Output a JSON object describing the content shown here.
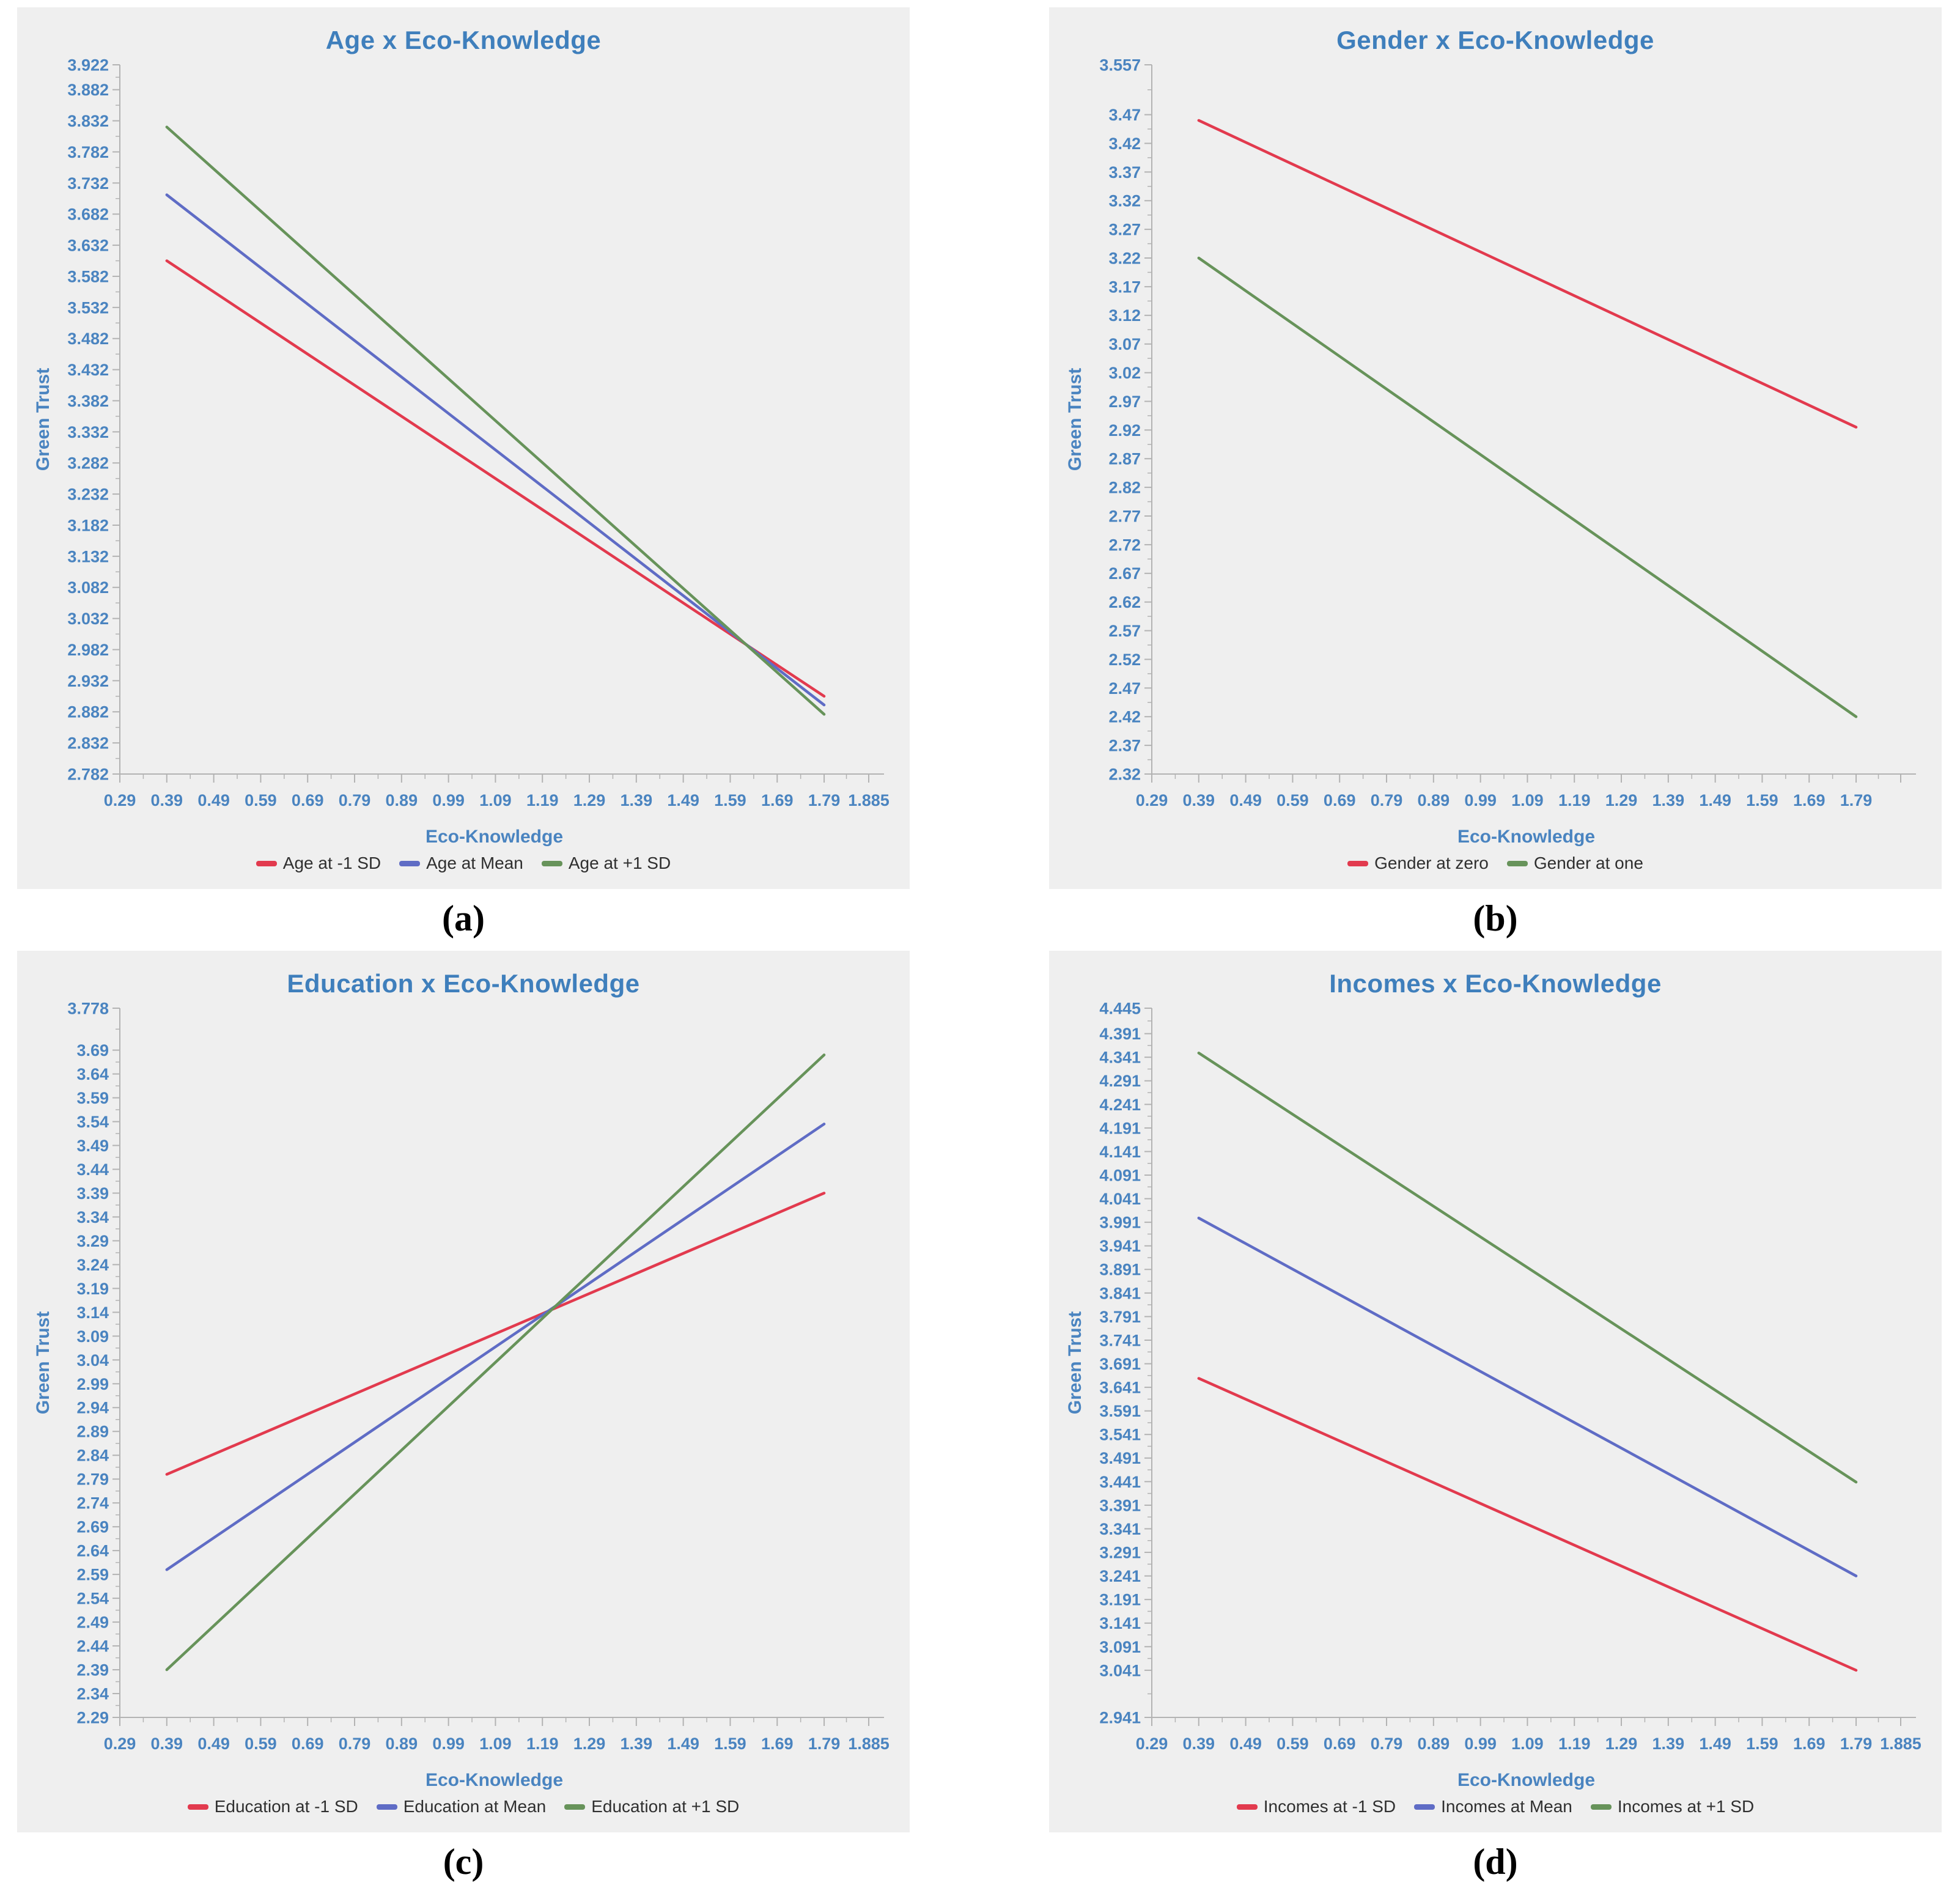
{
  "colors": {
    "page_bg": "#ffffff",
    "panel_bg": "#efefef",
    "title_text": "#3f7fbc",
    "axis_text": "#4a84c0",
    "legend_text": "#2f2f2f",
    "axis_line": "#b3b3b3",
    "red_line": "#e23a4e",
    "blue_line": "#5f6cc5",
    "green_line": "#67935a"
  },
  "chart_data": [
    {
      "id": "a",
      "type": "line",
      "caption_label": "(a)",
      "title": "Age x Eco-Knowledge",
      "xlabel": "Eco-Knowledge",
      "ylabel": "Green Trust",
      "xlim": [
        0.29,
        1.885
      ],
      "ylim": [
        2.782,
        3.922
      ],
      "grid": false,
      "legend_position": "bottom",
      "x_tick_labels": [
        "0.29",
        "0.39",
        "0.49",
        "0.59",
        "0.69",
        "0.79",
        "0.89",
        "0.99",
        "1.09",
        "1.19",
        "1.29",
        "1.39",
        "1.49",
        "1.59",
        "1.69",
        "1.79",
        "1.885"
      ],
      "y_tick_labels": [
        "3.922",
        "3.882",
        "3.832",
        "3.782",
        "3.732",
        "3.682",
        "3.632",
        "3.582",
        "3.532",
        "3.482",
        "3.432",
        "3.382",
        "3.332",
        "3.282",
        "3.232",
        "3.182",
        "3.132",
        "3.082",
        "3.032",
        "2.982",
        "2.932",
        "2.882",
        "2.832",
        "2.782"
      ],
      "series": [
        {
          "name": "Age at -1 SD",
          "color": "#e23a4e",
          "x": [
            0.39,
            1.79
          ],
          "y": [
            3.607,
            2.907
          ]
        },
        {
          "name": "Age at Mean",
          "color": "#5f6cc5",
          "x": [
            0.39,
            1.79
          ],
          "y": [
            3.713,
            2.893
          ]
        },
        {
          "name": "Age at +1 SD",
          "color": "#67935a",
          "x": [
            0.39,
            1.79
          ],
          "y": [
            3.822,
            2.878
          ]
        }
      ]
    },
    {
      "id": "b",
      "type": "line",
      "caption_label": "(b)",
      "title": "Gender x Eco-Knowledge",
      "xlabel": "Eco-Knowledge",
      "ylabel": "Green Trust",
      "xlim": [
        0.29,
        1.885
      ],
      "ylim": [
        2.32,
        3.557
      ],
      "grid": false,
      "legend_position": "bottom",
      "x_tick_labels": [
        "0.29",
        "0.39",
        "0.49",
        "0.59",
        "0.69",
        "0.79",
        "0.89",
        "0.99",
        "1.09",
        "1.19",
        "1.29",
        "1.39",
        "1.49",
        "1.59",
        "1.69",
        "1.79"
      ],
      "y_tick_labels": [
        "3.557",
        "3.47",
        "3.42",
        "3.37",
        "3.32",
        "3.27",
        "3.22",
        "3.17",
        "3.12",
        "3.07",
        "3.02",
        "2.97",
        "2.92",
        "2.87",
        "2.82",
        "2.77",
        "2.72",
        "2.67",
        "2.62",
        "2.57",
        "2.52",
        "2.47",
        "2.42",
        "2.37",
        "2.32"
      ],
      "series": [
        {
          "name": "Gender at zero",
          "color": "#e23a4e",
          "x": [
            0.39,
            1.79
          ],
          "y": [
            3.46,
            2.925
          ]
        },
        {
          "name": "Gender at one",
          "color": "#67935a",
          "x": [
            0.39,
            1.79
          ],
          "y": [
            3.22,
            2.42
          ]
        }
      ]
    },
    {
      "id": "c",
      "type": "line",
      "caption_label": "(c)",
      "title": "Education x Eco-Knowledge",
      "xlabel": "Eco-Knowledge",
      "ylabel": "Green Trust",
      "xlim": [
        0.29,
        1.885
      ],
      "ylim": [
        2.29,
        3.778
      ],
      "grid": false,
      "legend_position": "bottom",
      "x_tick_labels": [
        "0.29",
        "0.39",
        "0.49",
        "0.59",
        "0.69",
        "0.79",
        "0.89",
        "0.99",
        "1.09",
        "1.19",
        "1.29",
        "1.39",
        "1.49",
        "1.59",
        "1.69",
        "1.79",
        "1.885"
      ],
      "y_tick_labels": [
        "3.778",
        "3.69",
        "3.64",
        "3.59",
        "3.54",
        "3.49",
        "3.44",
        "3.39",
        "3.34",
        "3.29",
        "3.24",
        "3.19",
        "3.14",
        "3.09",
        "3.04",
        "2.99",
        "2.94",
        "2.89",
        "2.84",
        "2.79",
        "2.74",
        "2.69",
        "2.64",
        "2.59",
        "2.54",
        "2.49",
        "2.44",
        "2.39",
        "2.34",
        "2.29"
      ],
      "series": [
        {
          "name": "Education at -1 SD",
          "color": "#e23a4e",
          "x": [
            0.39,
            1.79
          ],
          "y": [
            2.8,
            3.39
          ]
        },
        {
          "name": "Education at Mean",
          "color": "#5f6cc5",
          "x": [
            0.39,
            1.79
          ],
          "y": [
            2.6,
            3.535
          ]
        },
        {
          "name": "Education at +1 SD",
          "color": "#67935a",
          "x": [
            0.39,
            1.79
          ],
          "y": [
            2.39,
            3.68
          ]
        }
      ]
    },
    {
      "id": "d",
      "type": "line",
      "caption_label": "(d)",
      "title": "Incomes x Eco-Knowledge",
      "xlabel": "Eco-Knowledge",
      "ylabel": "Green Trust",
      "xlim": [
        0.29,
        1.885
      ],
      "ylim": [
        2.941,
        4.445
      ],
      "grid": false,
      "legend_position": "bottom",
      "x_tick_labels": [
        "0.29",
        "0.39",
        "0.49",
        "0.59",
        "0.69",
        "0.79",
        "0.89",
        "0.99",
        "1.09",
        "1.19",
        "1.29",
        "1.39",
        "1.49",
        "1.59",
        "1.69",
        "1.79",
        "1.885"
      ],
      "y_tick_labels": [
        "4.445",
        "4.391",
        "4.341",
        "4.291",
        "4.241",
        "4.191",
        "4.141",
        "4.091",
        "4.041",
        "3.991",
        "3.941",
        "3.891",
        "3.841",
        "3.791",
        "3.741",
        "3.691",
        "3.641",
        "3.591",
        "3.541",
        "3.491",
        "3.441",
        "3.391",
        "3.341",
        "3.291",
        "3.241",
        "3.191",
        "3.141",
        "3.091",
        "3.041",
        "2.941"
      ],
      "series": [
        {
          "name": "Incomes at -1 SD",
          "color": "#e23a4e",
          "x": [
            0.39,
            1.79
          ],
          "y": [
            3.66,
            3.041
          ]
        },
        {
          "name": "Incomes at Mean",
          "color": "#5f6cc5",
          "x": [
            0.39,
            1.79
          ],
          "y": [
            4.0,
            3.241
          ]
        },
        {
          "name": "Incomes at +1 SD",
          "color": "#67935a",
          "x": [
            0.39,
            1.79
          ],
          "y": [
            4.35,
            3.44
          ]
        }
      ]
    }
  ]
}
